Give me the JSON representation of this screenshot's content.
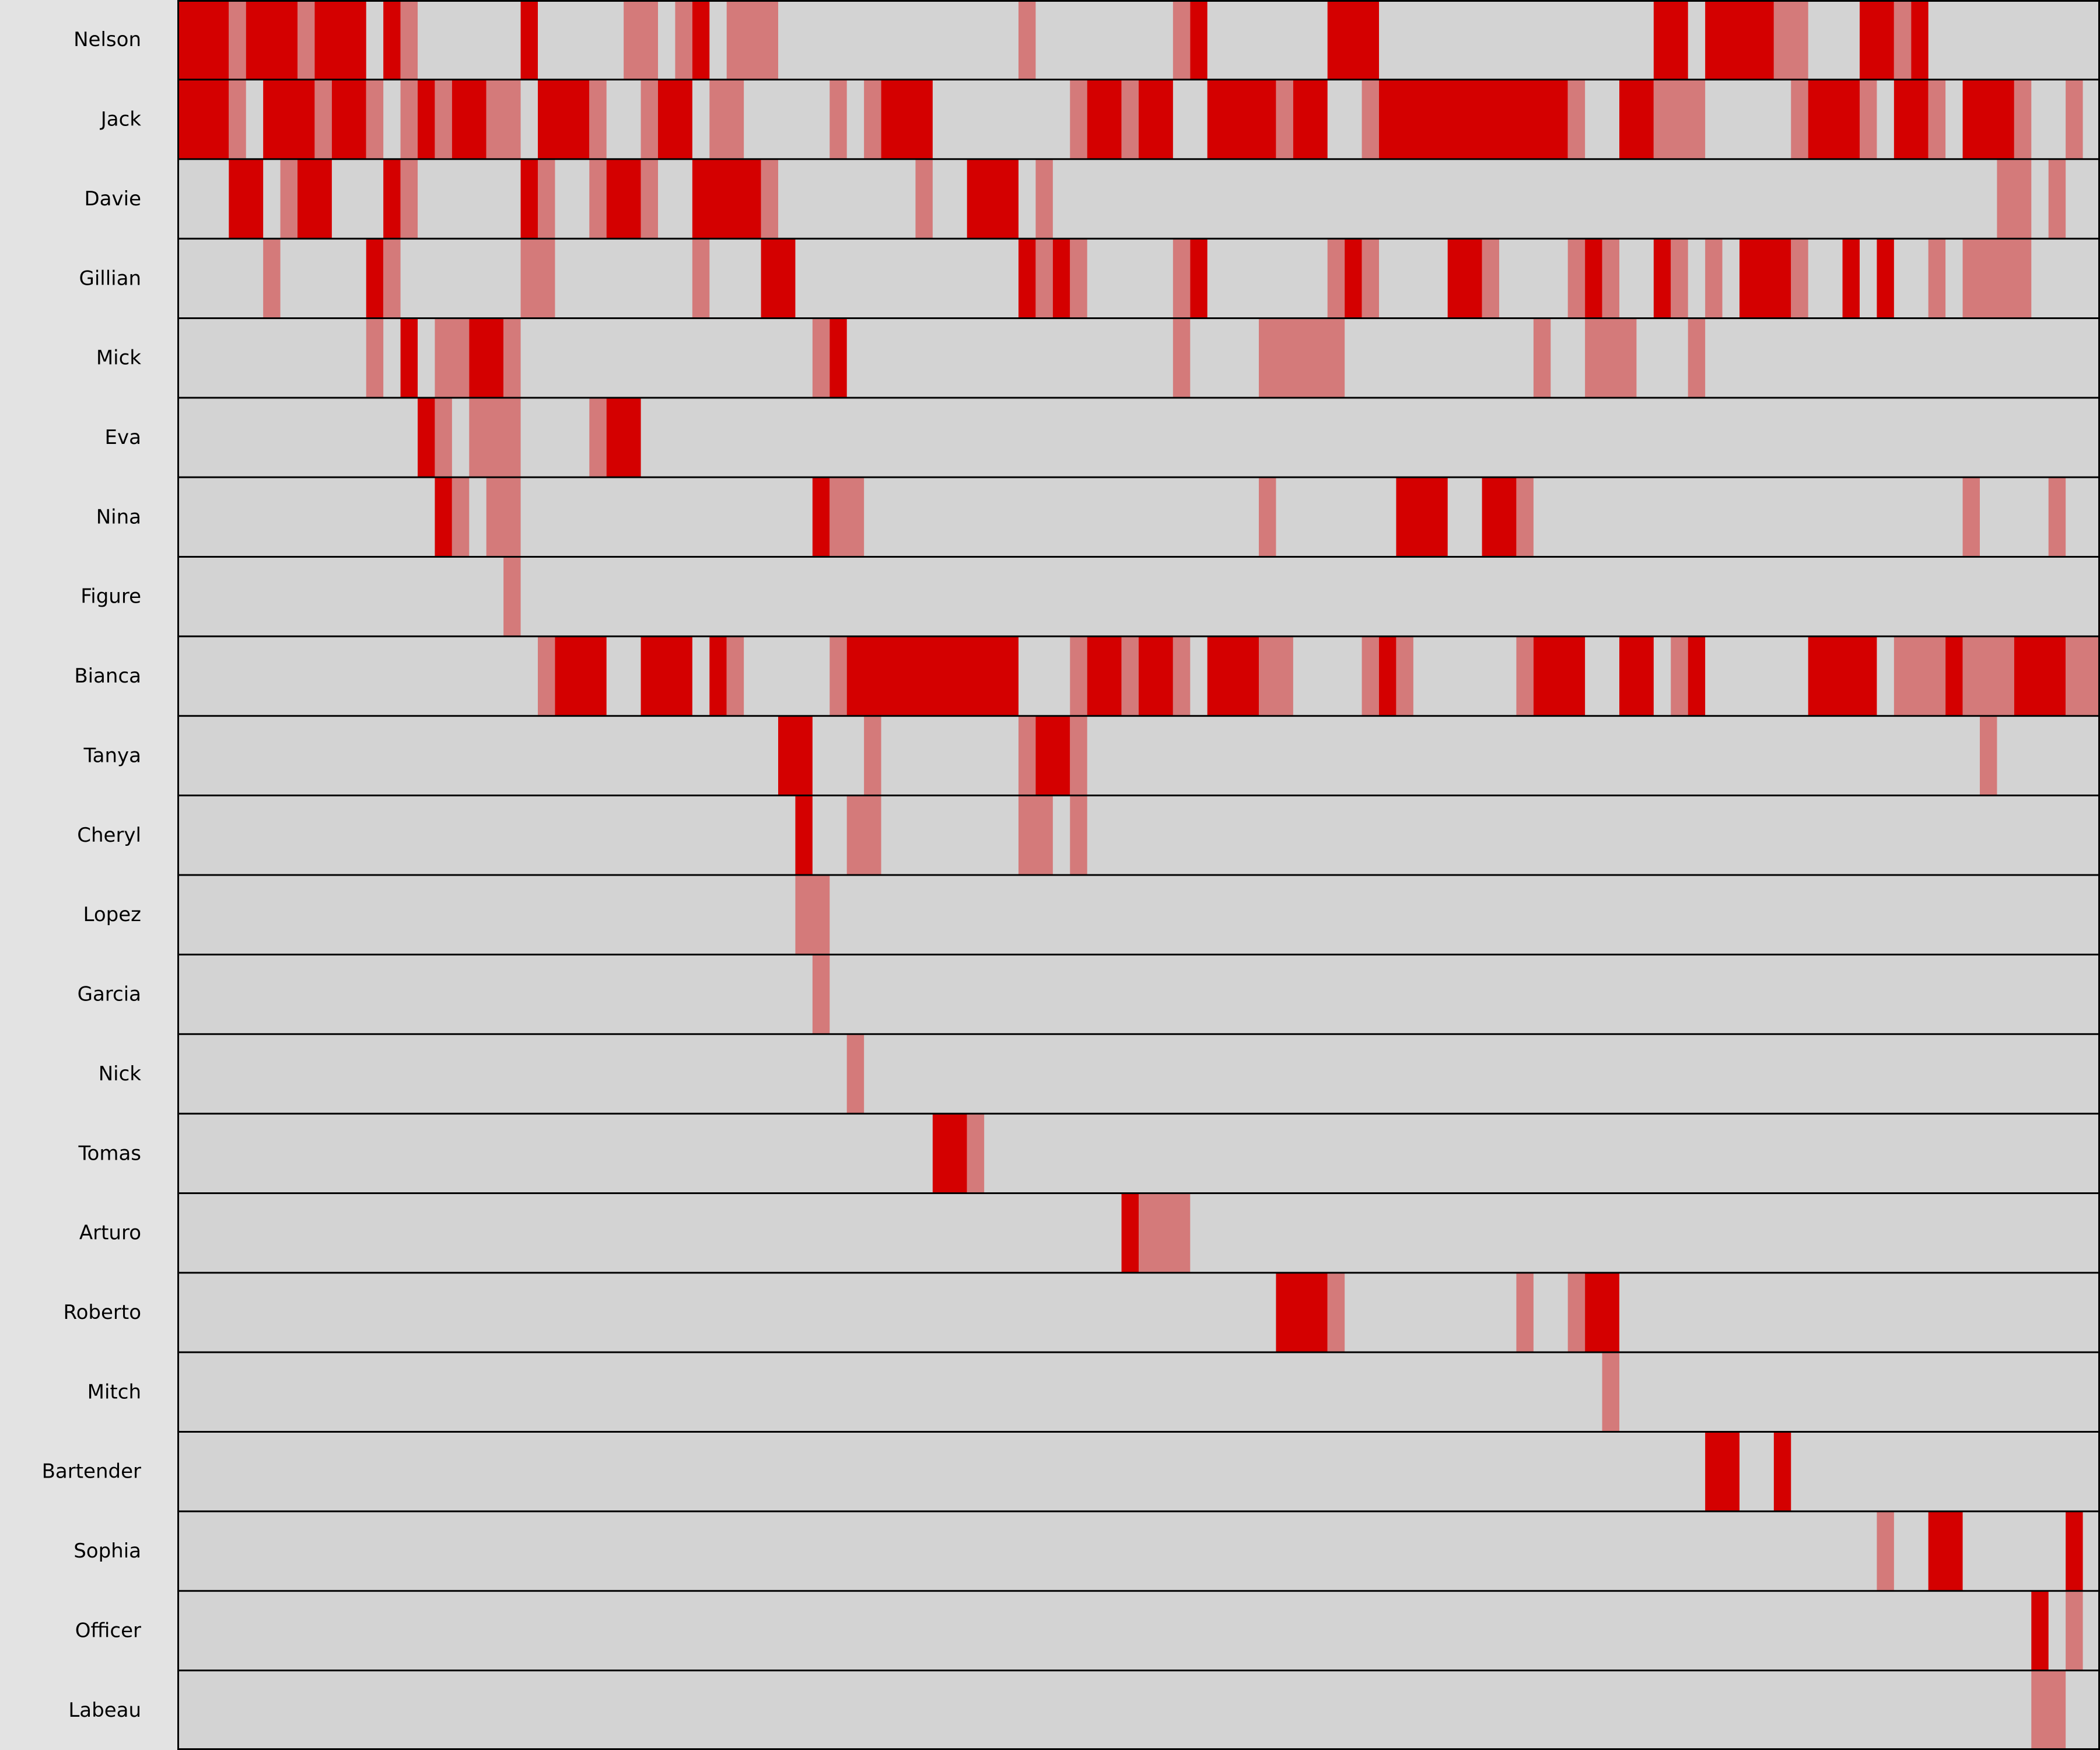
{
  "chart_data": {
    "type": "heatmap",
    "title": "",
    "xlabel": "",
    "ylabel": "",
    "x_range": [
      0,
      112
    ],
    "colors": {
      "background": "#e3e3e3",
      "cell_empty": "#d3d3d3",
      "cell_strong": "#d40000",
      "cell_light": "#d47a7a",
      "divider": "#000000"
    },
    "levels": {
      "S": "strong",
      "L": "light"
    },
    "rows": [
      {
        "name": "Nelson",
        "segments": [
          [
            0,
            3,
            "S"
          ],
          [
            3,
            1,
            "L"
          ],
          [
            4,
            3,
            "S"
          ],
          [
            7,
            1,
            "L"
          ],
          [
            8,
            3,
            "S"
          ],
          [
            12,
            1,
            "S"
          ],
          [
            13,
            1,
            "L"
          ],
          [
            20,
            1,
            "S"
          ],
          [
            26,
            2,
            "L"
          ],
          [
            29,
            1,
            "L"
          ],
          [
            30,
            1,
            "S"
          ],
          [
            32,
            3,
            "L"
          ],
          [
            49,
            1,
            "L"
          ],
          [
            58,
            1,
            "L"
          ],
          [
            59,
            1,
            "S"
          ],
          [
            67,
            3,
            "S"
          ],
          [
            86,
            2,
            "S"
          ],
          [
            89,
            4,
            "S"
          ],
          [
            93,
            2,
            "L"
          ],
          [
            98,
            2,
            "S"
          ],
          [
            100,
            1,
            "L"
          ],
          [
            101,
            1,
            "S"
          ]
        ]
      },
      {
        "name": "Jack",
        "segments": [
          [
            0,
            3,
            "S"
          ],
          [
            3,
            1,
            "L"
          ],
          [
            5,
            3,
            "S"
          ],
          [
            8,
            1,
            "L"
          ],
          [
            9,
            2,
            "S"
          ],
          [
            11,
            1,
            "L"
          ],
          [
            13,
            1,
            "L"
          ],
          [
            14,
            1,
            "S"
          ],
          [
            15,
            1,
            "L"
          ],
          [
            16,
            2,
            "S"
          ],
          [
            18,
            2,
            "L"
          ],
          [
            21,
            3,
            "S"
          ],
          [
            24,
            1,
            "L"
          ],
          [
            27,
            1,
            "L"
          ],
          [
            28,
            2,
            "S"
          ],
          [
            31,
            2,
            "L"
          ],
          [
            38,
            1,
            "L"
          ],
          [
            40,
            1,
            "L"
          ],
          [
            41,
            3,
            "S"
          ],
          [
            52,
            1,
            "L"
          ],
          [
            53,
            2,
            "S"
          ],
          [
            55,
            1,
            "L"
          ],
          [
            56,
            2,
            "S"
          ],
          [
            60,
            4,
            "S"
          ],
          [
            64,
            1,
            "L"
          ],
          [
            65,
            2,
            "S"
          ],
          [
            69,
            1,
            "L"
          ],
          [
            70,
            11,
            "S"
          ],
          [
            81,
            1,
            "L"
          ],
          [
            84,
            2,
            "S"
          ],
          [
            86,
            3,
            "L"
          ],
          [
            94,
            1,
            "L"
          ],
          [
            95,
            3,
            "S"
          ],
          [
            98,
            1,
            "L"
          ],
          [
            100,
            2,
            "S"
          ],
          [
            102,
            1,
            "L"
          ],
          [
            104,
            3,
            "S"
          ],
          [
            107,
            1,
            "L"
          ],
          [
            110,
            1,
            "L"
          ]
        ]
      },
      {
        "name": "Davie",
        "segments": [
          [
            3,
            2,
            "S"
          ],
          [
            6,
            1,
            "L"
          ],
          [
            7,
            2,
            "S"
          ],
          [
            12,
            1,
            "S"
          ],
          [
            13,
            1,
            "L"
          ],
          [
            20,
            1,
            "S"
          ],
          [
            21,
            1,
            "L"
          ],
          [
            24,
            1,
            "L"
          ],
          [
            25,
            2,
            "S"
          ],
          [
            27,
            1,
            "L"
          ],
          [
            30,
            4,
            "S"
          ],
          [
            34,
            1,
            "L"
          ],
          [
            43,
            1,
            "L"
          ],
          [
            46,
            3,
            "S"
          ],
          [
            50,
            1,
            "L"
          ],
          [
            106,
            2,
            "L"
          ],
          [
            109,
            1,
            "L"
          ]
        ]
      },
      {
        "name": "Gillian",
        "segments": [
          [
            5,
            1,
            "L"
          ],
          [
            11,
            1,
            "S"
          ],
          [
            12,
            1,
            "L"
          ],
          [
            20,
            2,
            "L"
          ],
          [
            30,
            1,
            "L"
          ],
          [
            34,
            2,
            "S"
          ],
          [
            49,
            1,
            "S"
          ],
          [
            50,
            1,
            "L"
          ],
          [
            51,
            1,
            "S"
          ],
          [
            52,
            1,
            "L"
          ],
          [
            58,
            1,
            "L"
          ],
          [
            59,
            1,
            "S"
          ],
          [
            67,
            1,
            "L"
          ],
          [
            68,
            1,
            "S"
          ],
          [
            69,
            1,
            "L"
          ],
          [
            74,
            2,
            "S"
          ],
          [
            76,
            1,
            "L"
          ],
          [
            81,
            1,
            "L"
          ],
          [
            82,
            1,
            "S"
          ],
          [
            83,
            1,
            "L"
          ],
          [
            86,
            1,
            "S"
          ],
          [
            87,
            1,
            "L"
          ],
          [
            89,
            1,
            "L"
          ],
          [
            91,
            3,
            "S"
          ],
          [
            94,
            1,
            "L"
          ],
          [
            97,
            1,
            "S"
          ],
          [
            99,
            1,
            "S"
          ],
          [
            102,
            1,
            "L"
          ],
          [
            104,
            4,
            "L"
          ]
        ]
      },
      {
        "name": "Mick",
        "segments": [
          [
            11,
            1,
            "L"
          ],
          [
            13,
            1,
            "S"
          ],
          [
            15,
            2,
            "L"
          ],
          [
            17,
            2,
            "S"
          ],
          [
            19,
            1,
            "L"
          ],
          [
            37,
            1,
            "L"
          ],
          [
            38,
            1,
            "S"
          ],
          [
            58,
            1,
            "L"
          ],
          [
            63,
            5,
            "L"
          ],
          [
            79,
            1,
            "L"
          ],
          [
            82,
            3,
            "L"
          ],
          [
            88,
            1,
            "L"
          ]
        ]
      },
      {
        "name": "Eva",
        "segments": [
          [
            14,
            1,
            "S"
          ],
          [
            15,
            1,
            "L"
          ],
          [
            17,
            3,
            "L"
          ],
          [
            24,
            1,
            "L"
          ],
          [
            25,
            2,
            "S"
          ]
        ]
      },
      {
        "name": "Nina",
        "segments": [
          [
            15,
            1,
            "S"
          ],
          [
            16,
            1,
            "L"
          ],
          [
            18,
            2,
            "L"
          ],
          [
            37,
            1,
            "S"
          ],
          [
            38,
            2,
            "L"
          ],
          [
            63,
            1,
            "L"
          ],
          [
            71,
            3,
            "S"
          ],
          [
            76,
            2,
            "S"
          ],
          [
            78,
            1,
            "L"
          ],
          [
            104,
            1,
            "L"
          ],
          [
            109,
            1,
            "L"
          ]
        ]
      },
      {
        "name": "Figure",
        "segments": [
          [
            19,
            1,
            "L"
          ]
        ]
      },
      {
        "name": "Bianca",
        "segments": [
          [
            21,
            1,
            "L"
          ],
          [
            22,
            3,
            "S"
          ],
          [
            27,
            3,
            "S"
          ],
          [
            31,
            1,
            "S"
          ],
          [
            32,
            1,
            "L"
          ],
          [
            38,
            1,
            "L"
          ],
          [
            39,
            10,
            "S"
          ],
          [
            52,
            1,
            "L"
          ],
          [
            53,
            2,
            "S"
          ],
          [
            55,
            1,
            "L"
          ],
          [
            56,
            2,
            "S"
          ],
          [
            58,
            1,
            "L"
          ],
          [
            60,
            3,
            "S"
          ],
          [
            63,
            2,
            "L"
          ],
          [
            69,
            1,
            "L"
          ],
          [
            70,
            1,
            "S"
          ],
          [
            71,
            1,
            "L"
          ],
          [
            78,
            1,
            "L"
          ],
          [
            79,
            3,
            "S"
          ],
          [
            84,
            2,
            "S"
          ],
          [
            87,
            1,
            "L"
          ],
          [
            88,
            1,
            "S"
          ],
          [
            95,
            3,
            "S"
          ],
          [
            98,
            1,
            "S"
          ],
          [
            100,
            3,
            "L"
          ],
          [
            103,
            1,
            "S"
          ],
          [
            104,
            3,
            "L"
          ],
          [
            107,
            3,
            "S"
          ],
          [
            110,
            2,
            "L"
          ]
        ]
      },
      {
        "name": "Tanya",
        "segments": [
          [
            35,
            2,
            "S"
          ],
          [
            40,
            1,
            "L"
          ],
          [
            49,
            1,
            "L"
          ],
          [
            50,
            2,
            "S"
          ],
          [
            52,
            1,
            "L"
          ],
          [
            105,
            1,
            "L"
          ]
        ]
      },
      {
        "name": "Cheryl",
        "segments": [
          [
            36,
            1,
            "S"
          ],
          [
            39,
            2,
            "L"
          ],
          [
            49,
            2,
            "L"
          ],
          [
            52,
            1,
            "L"
          ]
        ]
      },
      {
        "name": "Lopez",
        "segments": [
          [
            36,
            2,
            "L"
          ]
        ]
      },
      {
        "name": "Garcia",
        "segments": [
          [
            37,
            1,
            "L"
          ]
        ]
      },
      {
        "name": "Nick",
        "segments": [
          [
            39,
            1,
            "L"
          ]
        ]
      },
      {
        "name": "Tomas",
        "segments": [
          [
            44,
            2,
            "S"
          ],
          [
            46,
            1,
            "L"
          ]
        ]
      },
      {
        "name": "Arturo",
        "segments": [
          [
            55,
            1,
            "S"
          ],
          [
            56,
            3,
            "L"
          ]
        ]
      },
      {
        "name": "Roberto",
        "segments": [
          [
            64,
            3,
            "S"
          ],
          [
            67,
            1,
            "L"
          ],
          [
            78,
            1,
            "L"
          ],
          [
            81,
            1,
            "L"
          ],
          [
            82,
            2,
            "S"
          ]
        ]
      },
      {
        "name": "Mitch",
        "segments": [
          [
            83,
            1,
            "L"
          ]
        ]
      },
      {
        "name": "Bartender",
        "segments": [
          [
            89,
            2,
            "S"
          ],
          [
            93,
            1,
            "S"
          ]
        ]
      },
      {
        "name": "Sophia",
        "segments": [
          [
            99,
            1,
            "L"
          ],
          [
            102,
            2,
            "S"
          ],
          [
            110,
            1,
            "S"
          ]
        ]
      },
      {
        "name": "Officer",
        "segments": [
          [
            108,
            1,
            "S"
          ],
          [
            110,
            1,
            "L"
          ]
        ]
      },
      {
        "name": "Labeau",
        "segments": [
          [
            108,
            2,
            "L"
          ]
        ]
      }
    ]
  }
}
